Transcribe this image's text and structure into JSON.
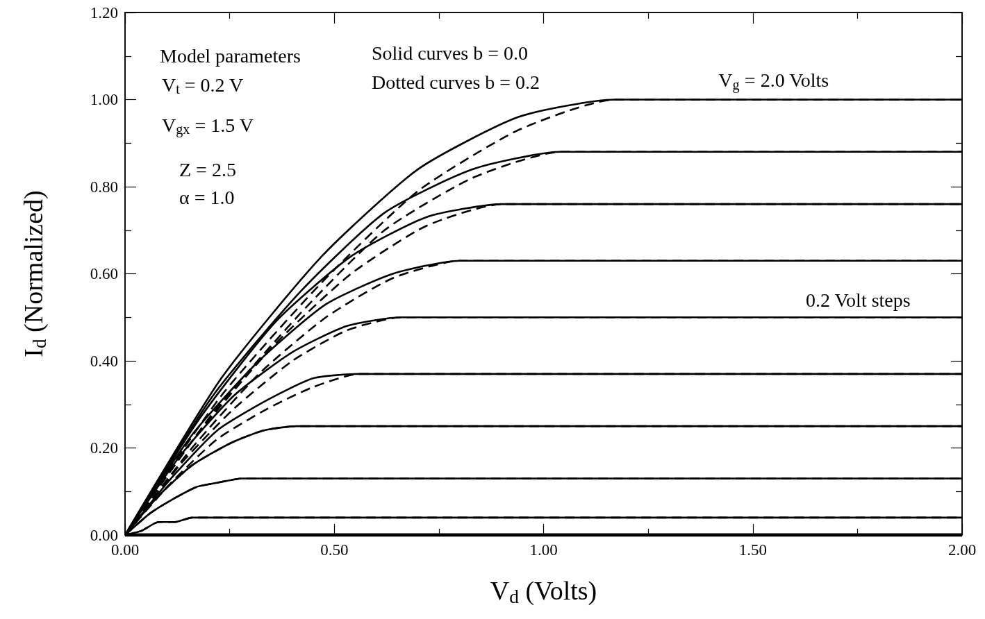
{
  "chart_data": {
    "type": "line",
    "xlabel": "V$_{d}$ (Volts)",
    "ylabel": "I$_{d}$ (Normalized)",
    "xlim": [
      0,
      2
    ],
    "ylim": [
      0,
      1.2
    ],
    "xticks": [
      {
        "value": 0,
        "label": "0.00"
      },
      {
        "value": 0.25,
        "label": null
      },
      {
        "value": 0.5,
        "label": "0.50"
      },
      {
        "value": 0.75,
        "label": null
      },
      {
        "value": 1,
        "label": "1.00"
      },
      {
        "value": 1.25,
        "label": null
      },
      {
        "value": 1.5,
        "label": "1.50"
      },
      {
        "value": 1.75,
        "label": null
      },
      {
        "value": 2,
        "label": "2.00"
      }
    ],
    "yticks": [
      {
        "value": 0,
        "label": "0.00"
      },
      {
        "value": 0.1,
        "label": null
      },
      {
        "value": 0.2,
        "label": "0.20"
      },
      {
        "value": 0.3,
        "label": null
      },
      {
        "value": 0.4,
        "label": "0.40"
      },
      {
        "value": 0.5,
        "label": null
      },
      {
        "value": 0.6,
        "label": "0.60"
      },
      {
        "value": 0.7,
        "label": null
      },
      {
        "value": 0.8,
        "label": "0.80"
      },
      {
        "value": 0.9,
        "label": null
      },
      {
        "value": 1,
        "label": "1.00"
      },
      {
        "value": 1.1,
        "label": null
      },
      {
        "value": 1.2,
        "label": "1.20"
      }
    ],
    "annotations": [
      "Model parameters",
      "V$_{t}$ = 0.2 V",
      "V$_{gx}$ = 1.5 V",
      "Z = 2.5",
      "α = 1.0",
      "Solid curves b = 0.0",
      "Dotted curves b = 0.2",
      "0.2 Volt steps",
      {
        "text": "V$_{g}$ = 2.0 Volts",
        "x": 1.55,
        "y": 1.0
      }
    ],
    "series": [
      {
        "color": "#000000",
        "line_style": "solid",
        "x": [
          0,
          0.23,
          0.47,
          0.7,
          0.94,
          1.17,
          2
        ],
        "values": [
          0,
          0.36,
          0.64,
          0.84,
          0.96,
          1,
          1
        ]
      },
      {
        "color": "#000000",
        "line_style": "dashed",
        "x": [
          0,
          0.23,
          0.47,
          0.7,
          0.94,
          1.17,
          2
        ],
        "values": [
          0,
          0.32,
          0.58,
          0.79,
          0.93,
          1,
          1
        ]
      },
      {
        "color": "#000000",
        "line_style": "solid",
        "x": [
          0,
          0.21,
          0.42,
          0.62,
          0.83,
          1.04,
          2
        ],
        "values": [
          0,
          0.32,
          0.56,
          0.74,
          0.84,
          0.88,
          0.88
        ]
      },
      {
        "color": "#000000",
        "line_style": "dashed",
        "x": [
          0,
          0.21,
          0.42,
          0.62,
          0.83,
          1.04,
          2
        ],
        "values": [
          0,
          0.28,
          0.51,
          0.7,
          0.82,
          0.88,
          0.88
        ]
      },
      {
        "color": "#000000",
        "line_style": "solid",
        "x": [
          0,
          0.18,
          0.36,
          0.54,
          0.72,
          0.9,
          2
        ],
        "values": [
          0,
          0.27,
          0.49,
          0.64,
          0.73,
          0.76,
          0.76
        ]
      },
      {
        "color": "#000000",
        "line_style": "dashed",
        "x": [
          0,
          0.18,
          0.36,
          0.54,
          0.72,
          0.9,
          2
        ],
        "values": [
          0,
          0.24,
          0.44,
          0.6,
          0.71,
          0.76,
          0.76
        ]
      },
      {
        "color": "#000000",
        "line_style": "solid",
        "x": [
          0,
          0.16,
          0.32,
          0.48,
          0.64,
          0.8,
          2
        ],
        "values": [
          0,
          0.23,
          0.4,
          0.53,
          0.6,
          0.63,
          0.63
        ]
      },
      {
        "color": "#000000",
        "line_style": "dashed",
        "x": [
          0,
          0.16,
          0.32,
          0.48,
          0.64,
          0.8,
          2
        ],
        "values": [
          0,
          0.2,
          0.37,
          0.5,
          0.59,
          0.63,
          0.63
        ]
      },
      {
        "color": "#000000",
        "line_style": "solid",
        "x": [
          0,
          0.13,
          0.26,
          0.4,
          0.53,
          0.66,
          2
        ],
        "values": [
          0,
          0.18,
          0.32,
          0.42,
          0.48,
          0.5,
          0.5
        ]
      },
      {
        "color": "#000000",
        "line_style": "dashed",
        "x": [
          0,
          0.13,
          0.26,
          0.4,
          0.53,
          0.66,
          2
        ],
        "values": [
          0,
          0.16,
          0.29,
          0.4,
          0.47,
          0.5,
          0.5
        ]
      },
      {
        "color": "#000000",
        "line_style": "solid",
        "x": [
          0,
          0.11,
          0.22,
          0.34,
          0.45,
          0.56,
          2
        ],
        "values": [
          0,
          0.13,
          0.24,
          0.31,
          0.36,
          0.37,
          0.37
        ]
      },
      {
        "color": "#000000",
        "line_style": "dashed",
        "x": [
          0,
          0.11,
          0.22,
          0.34,
          0.45,
          0.56,
          2
        ],
        "values": [
          0,
          0.12,
          0.22,
          0.29,
          0.34,
          0.37,
          0.37
        ]
      },
      {
        "color": "#000000",
        "line_style": "solid",
        "x": [
          0,
          0.08,
          0.16,
          0.25,
          0.33,
          0.41,
          2
        ],
        "values": [
          0,
          0.09,
          0.16,
          0.21,
          0.24,
          0.25,
          0.25
        ]
      },
      {
        "color": "#000000",
        "line_style": "dashed",
        "x": [
          0,
          0.08,
          0.16,
          0.25,
          0.33,
          0.41,
          2
        ],
        "values": [
          0,
          0.09,
          0.16,
          0.21,
          0.24,
          0.25,
          0.25
        ]
      },
      {
        "color": "#000000",
        "line_style": "solid",
        "x": [
          0,
          0.06,
          0.11,
          0.17,
          0.22,
          0.28,
          2
        ],
        "values": [
          0,
          0.05,
          0.08,
          0.11,
          0.12,
          0.13,
          0.13
        ]
      },
      {
        "color": "#000000",
        "line_style": "dashed",
        "x": [
          0,
          0.06,
          0.11,
          0.17,
          0.22,
          0.28,
          2
        ],
        "values": [
          0,
          0.05,
          0.08,
          0.11,
          0.12,
          0.13,
          0.13
        ]
      },
      {
        "color": "#000000",
        "line_style": "solid",
        "x": [
          0,
          0.04,
          0.08,
          0.12,
          0.16,
          0.2,
          2
        ],
        "values": [
          0,
          0.01,
          0.03,
          0.03,
          0.04,
          0.04,
          0.04
        ]
      },
      {
        "color": "#000000",
        "line_style": "dashed",
        "x": [
          0,
          0.04,
          0.08,
          0.12,
          0.16,
          0.2,
          2
        ],
        "values": [
          0,
          0.01,
          0.03,
          0.03,
          0.04,
          0.04,
          0.04
        ]
      },
      {
        "color": "#000000",
        "line_style": "solid",
        "x": [
          0,
          2
        ],
        "values": [
          0,
          0
        ]
      }
    ]
  }
}
